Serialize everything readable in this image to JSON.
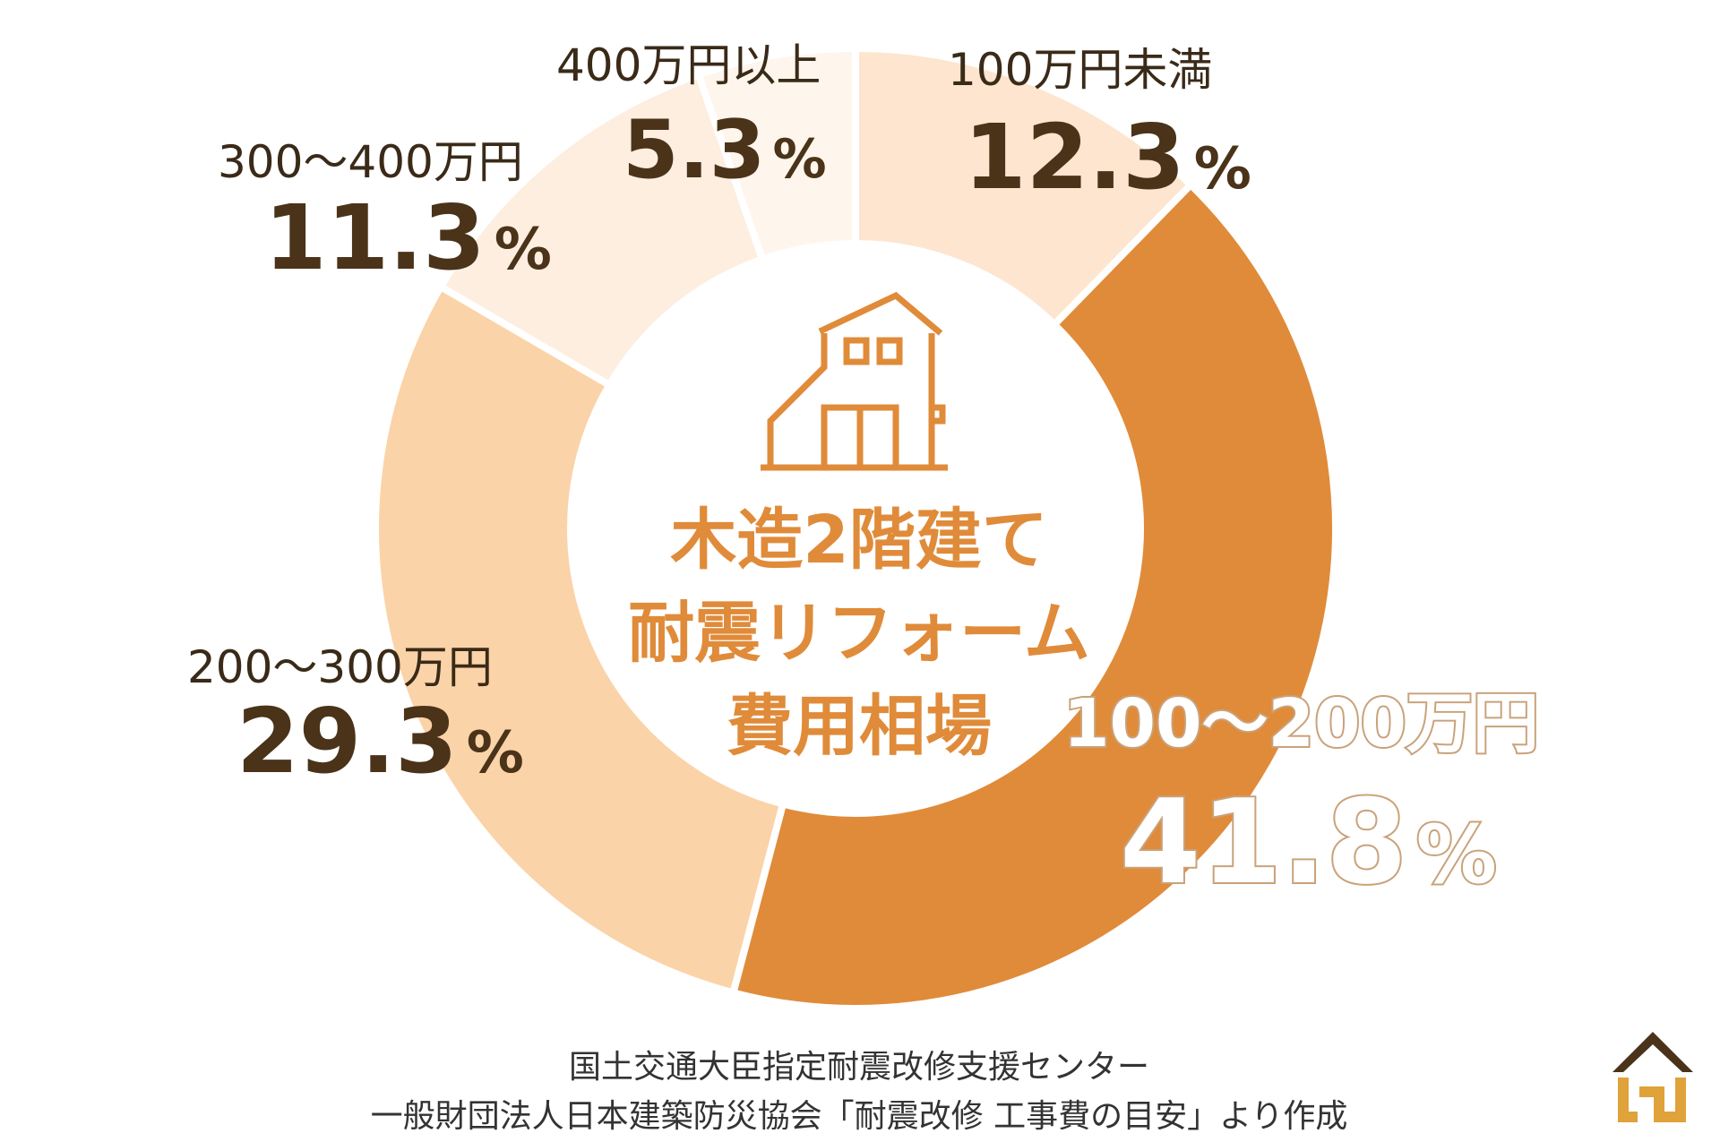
{
  "chart_data": {
    "type": "pie",
    "donut": true,
    "start": "12 o'clock, clockwise",
    "center_title": [
      "木造2階建て",
      "耐震リフォーム",
      "費用相場"
    ],
    "center_icon": "house-icon",
    "slices": [
      {
        "label": "100万円未満",
        "value": 12.3,
        "display": "12.3",
        "color": "#fde5d0"
      },
      {
        "label": "100〜200万円",
        "value": 41.8,
        "display": "41.8",
        "color": "#e08b3a"
      },
      {
        "label": "200〜300万円",
        "value": 29.3,
        "display": "29.3",
        "color": "#fbd3a8"
      },
      {
        "label": "300〜400万円",
        "value": 11.3,
        "display": "11.3",
        "color": "#fdeee0"
      },
      {
        "label": "400万円以上",
        "value": 5.3,
        "display": "5.3",
        "color": "#fef5ec"
      }
    ],
    "percent_sign": "%"
  },
  "footer": {
    "line1": "国土交通大臣指定耐震改修支援センター",
    "line2": "一般財団法人日本建築防災協会「耐震改修 工事費の目安」より作成"
  },
  "logo": {
    "icon": "house-logo-icon",
    "roof_color": "#4a3319",
    "body_color": "#e0a23a"
  }
}
